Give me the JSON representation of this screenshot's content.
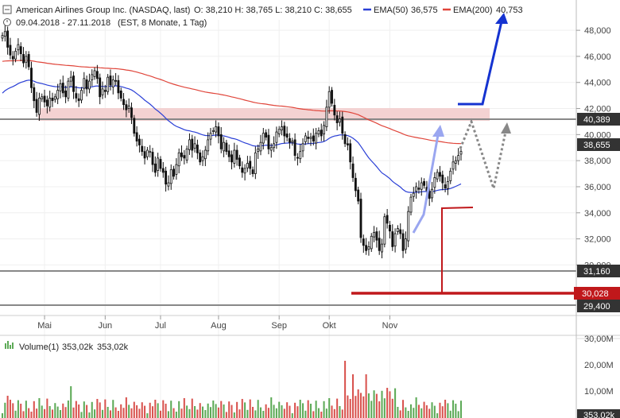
{
  "header": {
    "title": "American Airlines Group Inc. (NASDAQ, last)",
    "ohlc": "O: 38,210  H: 38,765  L: 38,210  C: 38,655",
    "ema50_label": "EMA(50)",
    "ema50_value": "36,575",
    "ema200_label": "EMA(200)",
    "ema200_value": "40,753",
    "range": "09.04.2018 - 27.11.2018",
    "meta": "(EST, 8 Monate, 1 Tag)"
  },
  "volume_header": {
    "label": "Volume(1)",
    "v1": "353,02k",
    "v2": "353,02k"
  },
  "colors": {
    "ema50": "#2a3fd6",
    "ema200": "#e0453a",
    "zone": "#f3d2d2",
    "resistance": "#888888",
    "support_red": "#c0181b",
    "projection_blue": "#1533d0",
    "tag_dark": "#333333",
    "tag_red": "#c0181b",
    "volume_up": "#5daa57",
    "volume_down": "#d9534f"
  },
  "chart_data": {
    "type": "candlestick",
    "y_range": [
      28.5,
      48.8
    ],
    "y_ticks": [
      "48,000",
      "46,000",
      "44,000",
      "42,000",
      "40,000",
      "38,000",
      "36,000",
      "34,000",
      "32,000",
      "30,000"
    ],
    "y_tick_values": [
      48,
      46,
      44,
      42,
      40,
      38,
      36,
      34,
      32,
      30
    ],
    "months": [
      {
        "label": "Mai",
        "day": 16
      },
      {
        "label": "Jun",
        "day": 39
      },
      {
        "label": "Jul",
        "day": 60
      },
      {
        "label": "Aug",
        "day": 82
      },
      {
        "label": "Sep",
        "day": 105
      },
      {
        "label": "Okt",
        "day": 124
      },
      {
        "label": "Nov",
        "day": 147
      }
    ],
    "closes": [
      47.6,
      47.9,
      46.7,
      46.1,
      45.8,
      46.4,
      46.9,
      46.2,
      45.5,
      46.0,
      45.2,
      43.6,
      42.6,
      41.7,
      42.8,
      42.9,
      42.5,
      42.2,
      42.8,
      42.6,
      42.9,
      43.4,
      43.9,
      43.2,
      42.9,
      44.1,
      44.4,
      43.3,
      42.8,
      42.6,
      43.4,
      44.3,
      43.5,
      44.1,
      44.6,
      44.9,
      44.3,
      42.9,
      43.5,
      43.3,
      44.4,
      43.8,
      44.2,
      44.1,
      43.2,
      42.8,
      42.3,
      41.9,
      42.2,
      41.3,
      40.1,
      39.5,
      39.2,
      38.7,
      38.2,
      38.8,
      38.7,
      37.7,
      37.1,
      38.2,
      37.4,
      37.1,
      36.2,
      36.3,
      37.3,
      36.8,
      37.7,
      38.6,
      38.3,
      38.2,
      38.9,
      39.6,
      38.8,
      39.3,
      38.6,
      37.9,
      38.3,
      38.8,
      39.6,
      40.1,
      40.3,
      40.6,
      39.9,
      38.9,
      39.4,
      38.7,
      38.3,
      37.9,
      38.8,
      38.1,
      37.6,
      37.1,
      37.4,
      37.8,
      37.4,
      37.0,
      38.6,
      38.9,
      39.4,
      40.1,
      39.8,
      38.9,
      39.0,
      39.3,
      40.2,
      40.4,
      40.6,
      39.9,
      39.8,
      39.4,
      39.5,
      38.4,
      38.2,
      38.7,
      39.3,
      39.9,
      39.7,
      39.8,
      39.5,
      40.1,
      40.3,
      39.9,
      40.7,
      42.1,
      43.3,
      42.4,
      41.5,
      40.9,
      41.2,
      40.1,
      39.3,
      39.2,
      37.9,
      36.7,
      35.7,
      34.9,
      32.1,
      31.5,
      31.1,
      31.4,
      32.2,
      32.5,
      31.9,
      31.1,
      31.6,
      33.7,
      33.2,
      32.6,
      31.4,
      32.4,
      32.8,
      32.4,
      31.1,
      32.0,
      34.1,
      35.2,
      35.5,
      36.0,
      35.8,
      36.3,
      36.1,
      35.7,
      35.1,
      35.8,
      36.7,
      37.1,
      36.8,
      36.3,
      35.9,
      36.4,
      37.2,
      37.9,
      38.0,
      38.4,
      38.7
    ]
  }
}
